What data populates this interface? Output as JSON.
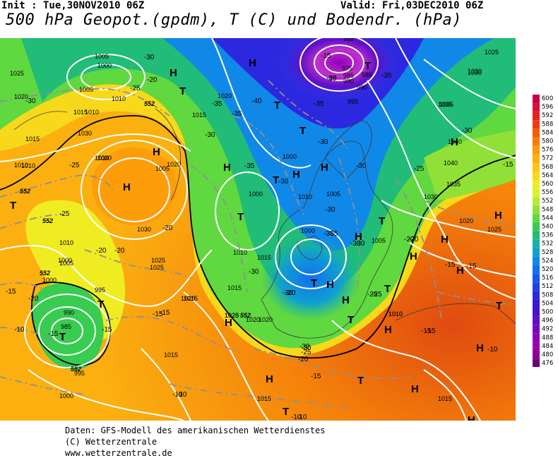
{
  "header": {
    "init": "Init : Tue,30NOV2010 06Z",
    "valid": "Valid: Fri,03DEC2010 06Z",
    "title": "500 hPa Geopot.(gpdm), T (C) und Bodendr. (hPa)"
  },
  "footer": {
    "line1": "Daten: GFS-Modell des amerikanischen Wetterdienstes",
    "line2": "(C) Wetterzentrale",
    "line3": "www.wetterzentrale.de"
  },
  "legend": {
    "levels": [
      "600",
      "596",
      "592",
      "588",
      "584",
      "580",
      "576",
      "572",
      "568",
      "564",
      "560",
      "556",
      "552",
      "548",
      "544",
      "540",
      "536",
      "532",
      "528",
      "524",
      "520",
      "516",
      "512",
      "508",
      "504",
      "500",
      "496",
      "492",
      "488",
      "484",
      "480",
      "476"
    ],
    "colors": [
      "#c8004a",
      "#d8103a",
      "#e82020",
      "#f03a10",
      "#f55a0a",
      "#f87a08",
      "#fb9a08",
      "#fdb010",
      "#fdc418",
      "#f8d81a",
      "#f0ec22",
      "#dcf030",
      "#b8ea38",
      "#90e038",
      "#60d840",
      "#38cc50",
      "#20bc78",
      "#18b0a8",
      "#10a0d0",
      "#1088e8",
      "#1070f0",
      "#1458f0",
      "#2040e8",
      "#2c28e0",
      "#3818d8",
      "#4810d0",
      "#6010c8",
      "#7808c0",
      "#9000b8",
      "#a000a8",
      "#8a0090",
      "#6a0078"
    ]
  },
  "map_labels": {
    "isobars": [
      "1025",
      "1020",
      "1015",
      "1010",
      "1005",
      "1000",
      "995",
      "990",
      "985",
      "975",
      "1030",
      "1035",
      "1040",
      "1030",
      "1025",
      "1020",
      "1015",
      "1010",
      "1005",
      "1000",
      "995",
      "990",
      "985",
      "1000",
      "1005",
      "1010",
      "1015",
      "1020",
      "1025",
      "1030",
      "1035",
      "1040",
      "1030",
      "1025",
      "1020",
      "1015",
      "1010",
      "1005",
      "1000",
      "1015",
      "1010",
      "1005",
      "1015",
      "1020",
      "1025",
      "1030",
      "1020",
      "1010",
      "1010",
      "1000",
      "1020",
      "1015",
      "1010",
      "995",
      "990",
      "985",
      "995",
      "1000",
      "1015",
      "1010",
      "1005",
      "1000",
      "1030",
      "1015",
      "1020",
      "1025",
      "1035",
      "1030"
    ],
    "temps": [
      "-30",
      "-20",
      "-25",
      "-30",
      "-35",
      "-40",
      "-35",
      "-15",
      "-30",
      "-35",
      "-35",
      "-25",
      "-35",
      "-30",
      "-30",
      "-35",
      "-30",
      "-30",
      "-25",
      "-30",
      "-30",
      "-25",
      "-20",
      "-20",
      "-20",
      "-15",
      "-10",
      "-15",
      "-20",
      "-15",
      "-15",
      "-20",
      "-30",
      "-25",
      "-30",
      "-15",
      "-10",
      "-15",
      "-30",
      "-35",
      "-20",
      "-40",
      "-35",
      "-15",
      "-10",
      "-10",
      "-15",
      "-15",
      "-15",
      "-20",
      "-25",
      "-30",
      "-30",
      "-25",
      "-20",
      "-15",
      "-10",
      "-10"
    ],
    "pressure_centers": [
      "H",
      "H",
      "H",
      "H",
      "H",
      "H",
      "H",
      "H",
      "H",
      "H",
      "H",
      "H",
      "H",
      "H",
      "H",
      "H",
      "H",
      "H",
      "H",
      "H",
      "H",
      "T",
      "T",
      "T",
      "T",
      "T",
      "T",
      "T",
      "T",
      "T",
      "T",
      "T",
      "T",
      "T",
      "T",
      "T",
      "T"
    ],
    "height_labels": [
      "552",
      "552",
      "552",
      "552",
      "552",
      "552"
    ]
  }
}
